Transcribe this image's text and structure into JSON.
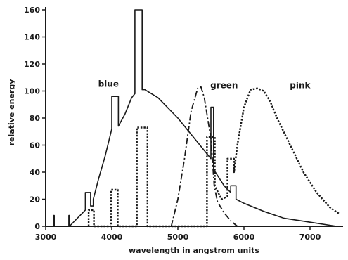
{
  "chart_data": {
    "type": "line",
    "xlabel": "wavelength in angstrom units",
    "ylabel": "relative energy",
    "xlim": [
      3000,
      7500
    ],
    "ylim": [
      0,
      160
    ],
    "x_ticks": [
      "3000",
      "4000",
      "5000",
      "6000",
      "7000"
    ],
    "x_tick_values": [
      3000,
      4000,
      5000,
      6000,
      7000
    ],
    "y_ticks": [
      "0",
      "20",
      "40",
      "60",
      "80",
      "100",
      "120",
      "140",
      "160"
    ],
    "y_tick_values": [
      0,
      20,
      40,
      60,
      80,
      100,
      120,
      140,
      160
    ],
    "grid": false,
    "legend": "none",
    "series": [
      {
        "name": "blue",
        "style": "solid",
        "x": [
          3120,
          3120,
          3130,
          3130,
          3350,
          3350,
          3360,
          3360,
          3600,
          3600,
          3680,
          3680,
          3720,
          3720,
          3800,
          3900,
          4000,
          4000,
          4100,
          4100,
          4200,
          4300,
          4350,
          4350,
          4460,
          4460,
          4500,
          4700,
          5000,
          5300,
          5500,
          5500,
          5540,
          5540,
          5700,
          5800,
          5800,
          5880,
          5880,
          6000,
          6300,
          6600,
          7000,
          7400
        ],
        "y": [
          0,
          8,
          8,
          0,
          0,
          8,
          8,
          0,
          12,
          25,
          25,
          15,
          15,
          20,
          35,
          52,
          72,
          96,
          96,
          74,
          83,
          95,
          98,
          160,
          160,
          101,
          101,
          95,
          80,
          62,
          50,
          88,
          88,
          42,
          30,
          25,
          30,
          30,
          20,
          17,
          11,
          6,
          3,
          0
        ]
      },
      {
        "name": "green",
        "style": "dash-dot",
        "x": [
          4900,
          5000,
          5100,
          5200,
          5300,
          5350,
          5400,
          5500,
          5550,
          5600,
          5700,
          5800,
          5900
        ],
        "y": [
          0,
          20,
          50,
          85,
          102,
          103,
          95,
          65,
          30,
          18,
          10,
          4,
          0
        ]
      },
      {
        "name": "pink",
        "style": "dotted",
        "x": [
          3650,
          3650,
          3730,
          3730,
          3990,
          3990,
          4090,
          4090,
          4380,
          4380,
          4540,
          4540,
          5440,
          5440,
          5560,
          5560,
          5660,
          5750,
          5750,
          5850,
          5850,
          5900,
          6000,
          6100,
          6200,
          6300,
          6400,
          6500,
          6700,
          6900,
          7100,
          7300,
          7450
        ],
        "y": [
          0,
          12,
          12,
          0,
          0,
          27,
          27,
          0,
          0,
          73,
          73,
          0,
          0,
          66,
          66,
          30,
          20,
          22,
          50,
          50,
          40,
          60,
          88,
          101,
          102,
          100,
          92,
          80,
          60,
          40,
          25,
          14,
          9
        ]
      }
    ],
    "annotations": [
      {
        "text": "blue",
        "x": 3950,
        "y": 103
      },
      {
        "text": "green",
        "x": 5700,
        "y": 102
      },
      {
        "text": "pink",
        "x": 6850,
        "y": 102
      }
    ]
  }
}
